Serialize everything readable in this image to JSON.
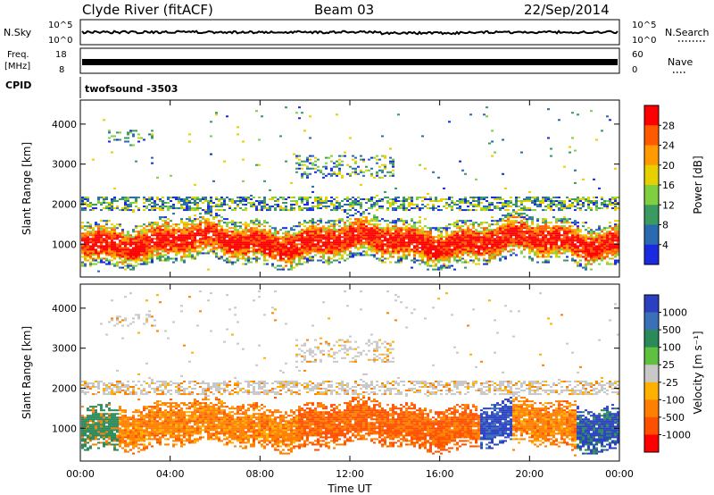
{
  "header": {
    "station": "Clyde River (fitACF)",
    "beam": "Beam 03",
    "date": "22/Sep/2014"
  },
  "top_panels": {
    "nsky_label": "N.Sky",
    "nsky_ticks": [
      "10^5",
      "10^0"
    ],
    "nsearch_label": "N.Search",
    "nsearch_ticks": [
      "10^5",
      "10^0"
    ],
    "freq_label_line1": "Freq.",
    "freq_label_line2": "[MHz]",
    "freq_ticks": [
      "18",
      "8"
    ],
    "nave_label": "Nave",
    "nave_ticks": [
      "60",
      "0"
    ],
    "cpid_label": "CPID",
    "cpid_value": "twofsound -3503"
  },
  "chart_data": [
    {
      "type": "heatmap",
      "name": "power-panel",
      "ylabel": "Slant Range [km]",
      "y_ticks": [
        "4000",
        "3000",
        "2000",
        "1000"
      ],
      "y_tick_values": [
        4000,
        3000,
        2000,
        1000
      ],
      "ylim": [
        180,
        4600
      ],
      "x_ticks": [
        "00:00",
        "04:00",
        "08:00",
        "12:00",
        "16:00",
        "20:00",
        "00:00"
      ],
      "xlim_hours": [
        0,
        24
      ],
      "colorbar": {
        "label": "Power [dB]",
        "tick_labels": [
          "28",
          "24",
          "20",
          "16",
          "12",
          "8",
          "4"
        ],
        "colors_top_to_bottom": [
          "#ff0000",
          "#ff5a00",
          "#ff9a00",
          "#e8d000",
          "#7fd040",
          "#3a9a60",
          "#2a6ab0",
          "#1a2ae0"
        ]
      }
    },
    {
      "type": "heatmap",
      "name": "velocity-panel",
      "ylabel": "Slant Range [km]",
      "y_ticks": [
        "4000",
        "3000",
        "2000",
        "1000"
      ],
      "y_tick_values": [
        4000,
        3000,
        2000,
        1000
      ],
      "ylim": [
        180,
        4600
      ],
      "x_ticks": [
        "00:00",
        "04:00",
        "08:00",
        "12:00",
        "16:00",
        "20:00",
        "00:00"
      ],
      "xlabel": "Time UT",
      "xlim_hours": [
        0,
        24
      ],
      "colorbar": {
        "label": "Velocity [m s⁻¹]",
        "tick_labels": [
          "1000",
          "500",
          "100",
          "25",
          "-25",
          "-100",
          "-500",
          "-1000"
        ],
        "colors_top_to_bottom": [
          "#2a40c0",
          "#3a70b8",
          "#2a8a5a",
          "#60c040",
          "#c8c8c8",
          "#ffb000",
          "#ff8000",
          "#ff5000",
          "#ff0000"
        ]
      }
    }
  ]
}
